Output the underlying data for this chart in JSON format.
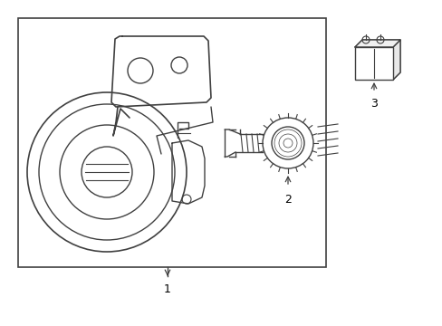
{
  "background_color": "#ffffff",
  "line_color": "#404040",
  "box_line_color": "#404040",
  "text_color": "#000000",
  "label1": "1",
  "label2": "2",
  "label3": "3",
  "fig_width": 4.89,
  "fig_height": 3.6,
  "dpi": 100
}
